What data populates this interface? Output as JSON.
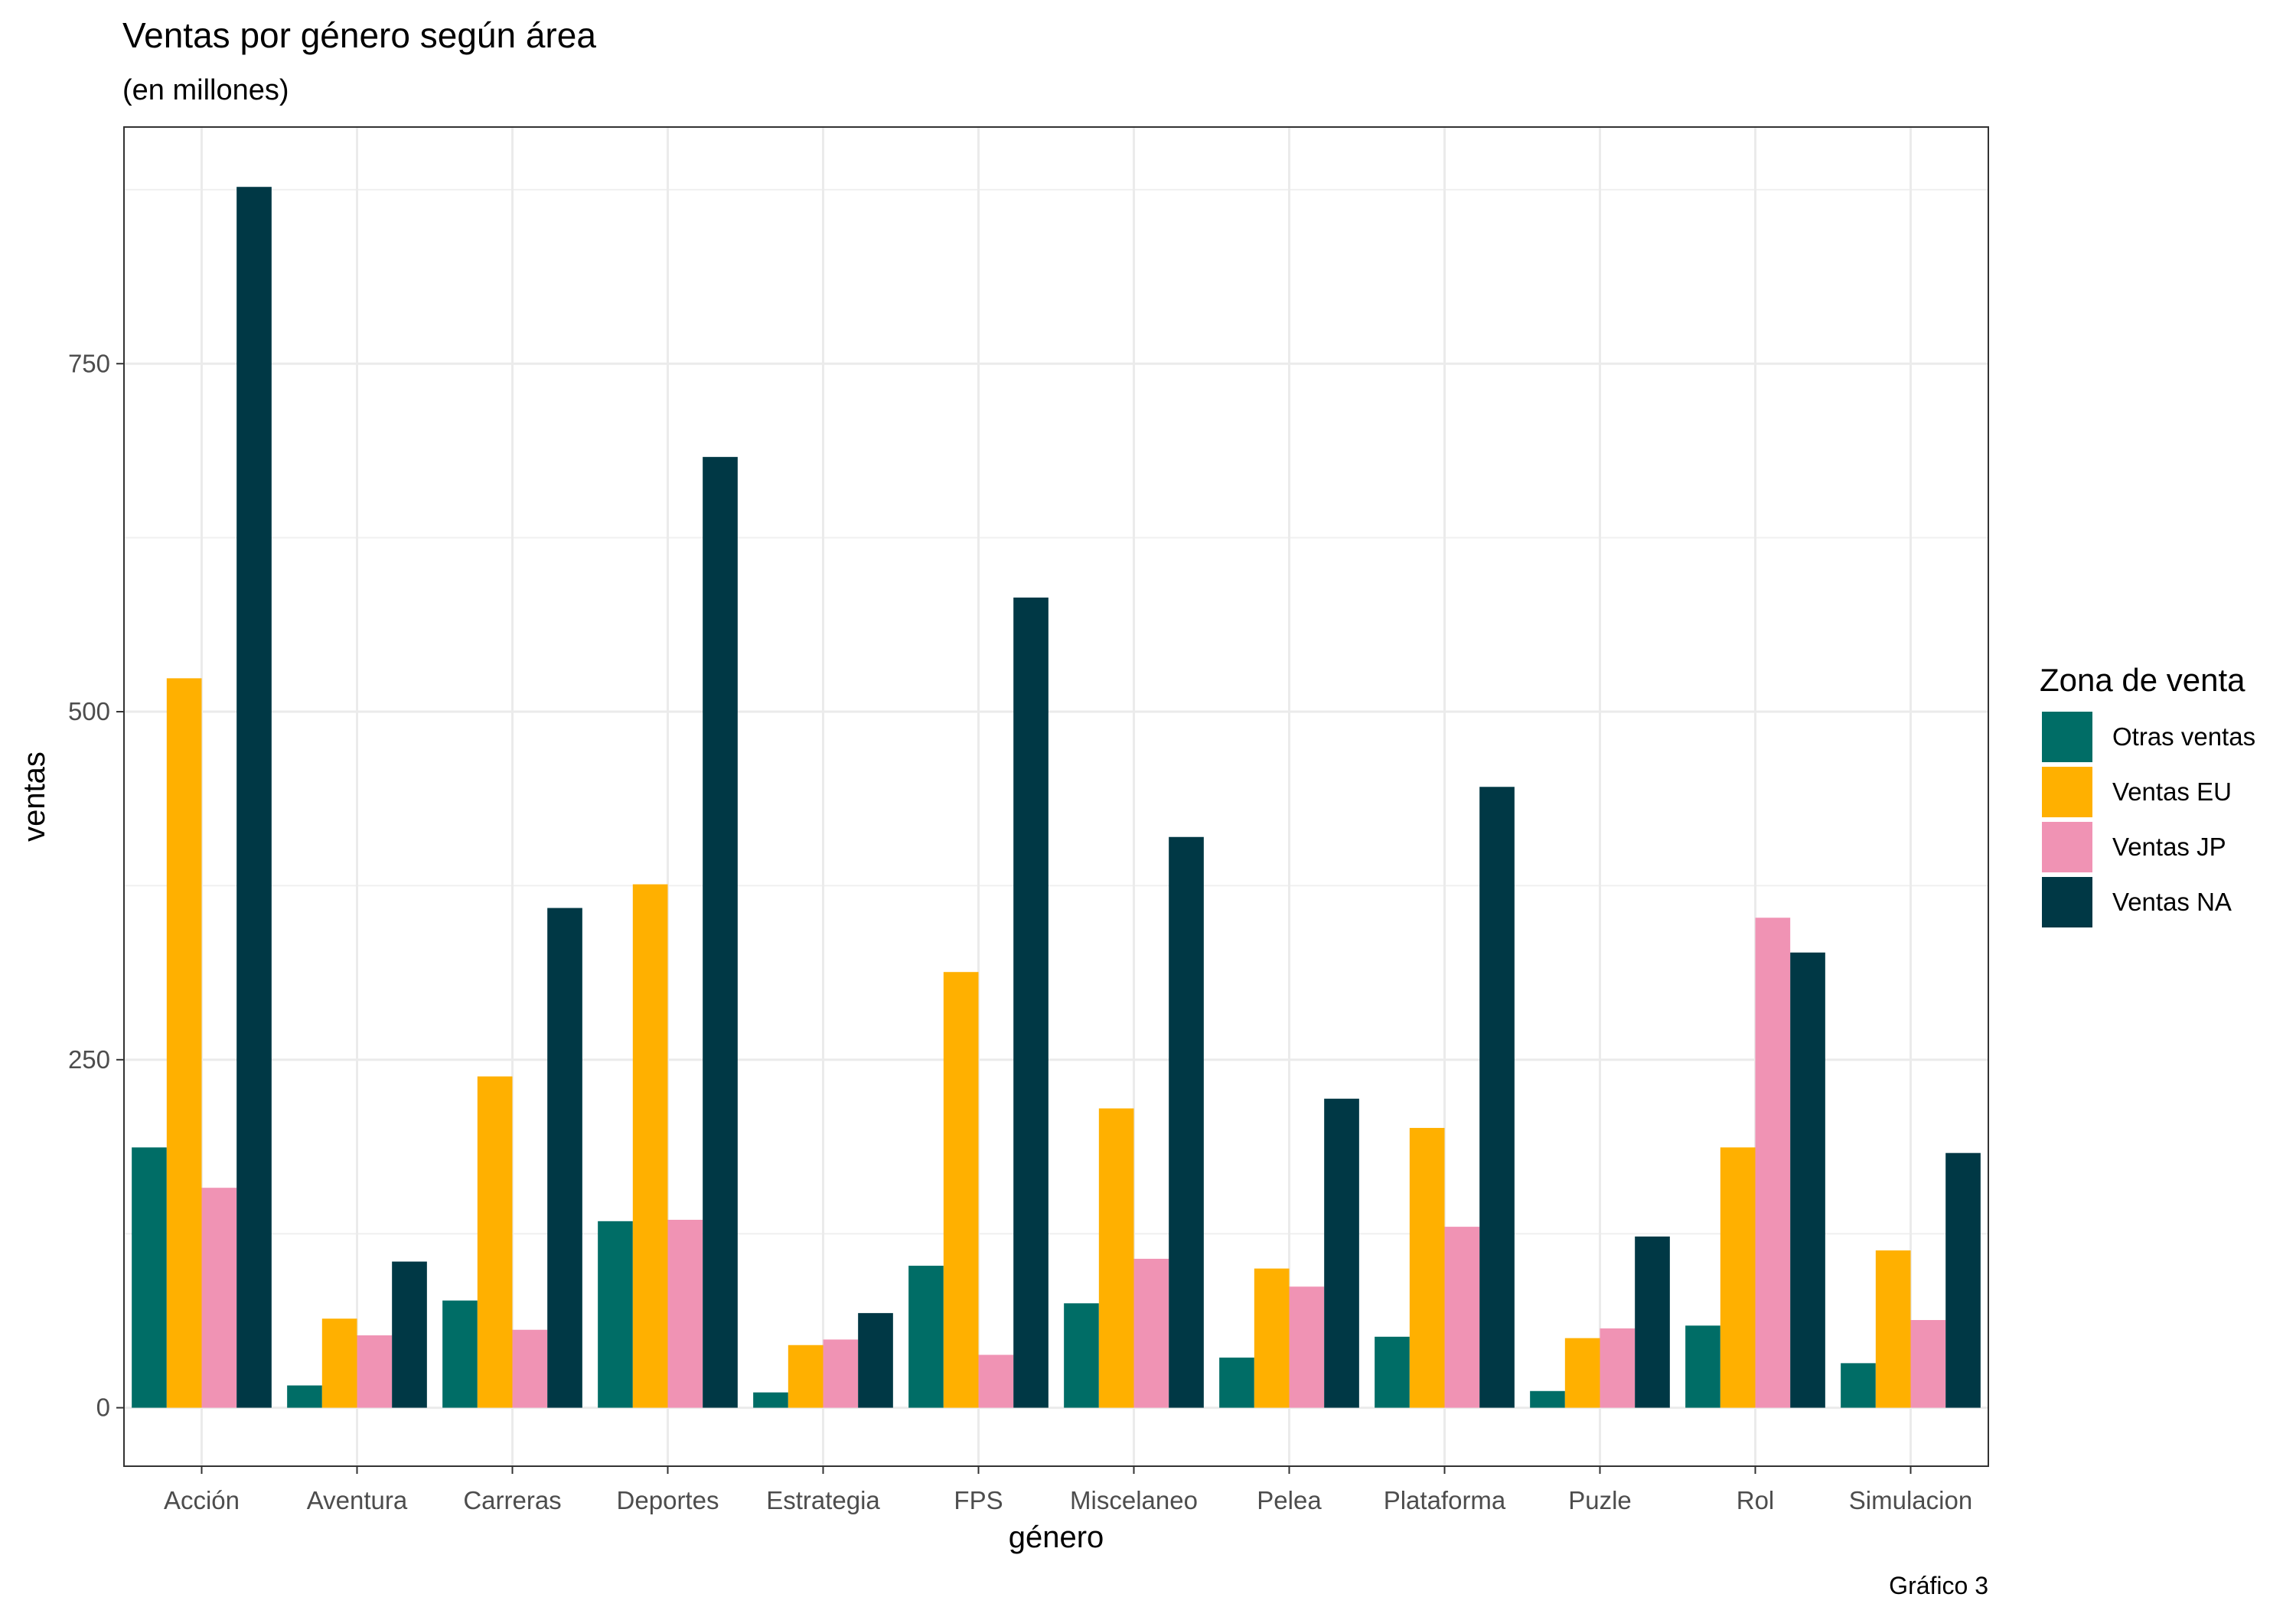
{
  "chart_data": {
    "type": "bar",
    "title": "Ventas por género según área",
    "subtitle": "(en millones)",
    "xlabel": "género",
    "ylabel": "ventas",
    "caption": "Gráfico 3",
    "legend_title": "Zona de venta",
    "legend_position": "right",
    "grid": true,
    "ylim": [
      -42,
      920
    ],
    "yticks": [
      0,
      250,
      500,
      750
    ],
    "categories": [
      "Acción",
      "Aventura",
      "Carreras",
      "Deportes",
      "Estrategia",
      "FPS",
      "Miscelaneo",
      "Pelea",
      "Plataforma",
      "Puzle",
      "Rol",
      "Simulacion"
    ],
    "series": [
      {
        "name": "Otras ventas",
        "color": "#006D66",
        "values": [
          187,
          16,
          77,
          134,
          11,
          102,
          75,
          36,
          51,
          12,
          59,
          32
        ]
      },
      {
        "name": "Ventas EU",
        "color": "#FFB000",
        "values": [
          524,
          64,
          238,
          376,
          45,
          313,
          215,
          100,
          201,
          50,
          187,
          113
        ]
      },
      {
        "name": "Ventas JP",
        "color": "#F093B4",
        "values": [
          158,
          52,
          56,
          135,
          49,
          38,
          107,
          87,
          130,
          57,
          352,
          63
        ]
      },
      {
        "name": "Ventas NA",
        "color": "#003845",
        "values": [
          877,
          105,
          359,
          683,
          68,
          582,
          410,
          222,
          446,
          123,
          327,
          183
        ]
      }
    ]
  }
}
